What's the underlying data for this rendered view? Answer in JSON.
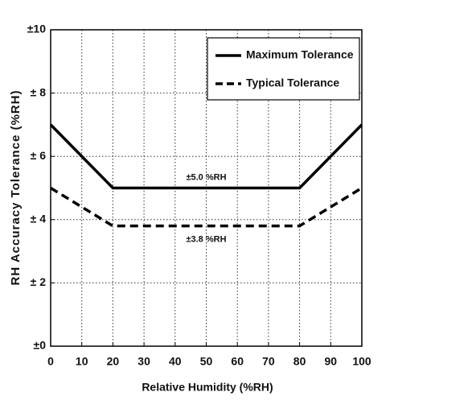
{
  "chart_data": {
    "type": "line",
    "x_label": "Relative Humidity (%RH)",
    "y_label": "RH Accuracy Tolerance (%RH)",
    "xlim": [
      0,
      100
    ],
    "xticks": [
      0,
      10,
      20,
      30,
      40,
      50,
      60,
      70,
      80,
      90,
      100
    ],
    "ylim": [
      0,
      10
    ],
    "yticks": [
      {
        "value": 0,
        "label": "±0"
      },
      {
        "value": 2,
        "label": "± 2"
      },
      {
        "value": 4,
        "label": "± 4"
      },
      {
        "value": 6,
        "label": "± 6"
      },
      {
        "value": 8,
        "label": "± 8"
      },
      {
        "value": 10,
        "label": "±10"
      }
    ],
    "grid": true,
    "legend": "upper right",
    "series": [
      {
        "name": "Maximum Tolerance",
        "color": "#000000",
        "line_style": "solid",
        "x": [
          0,
          20,
          80,
          100
        ],
        "values": [
          7,
          5,
          5,
          7
        ]
      },
      {
        "name": "Typical Tolerance",
        "color": "#000000",
        "line_style": "dashed",
        "x": [
          0,
          20,
          80,
          100
        ],
        "values": [
          5,
          3.8,
          3.8,
          5
        ]
      }
    ],
    "annotations": [
      "±5.0 %RH",
      "±3.8 %RH"
    ]
  }
}
